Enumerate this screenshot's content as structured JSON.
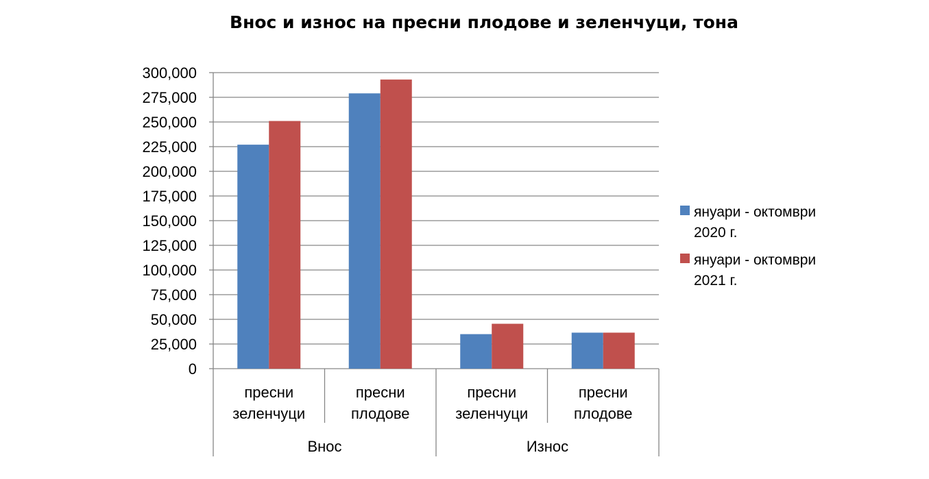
{
  "chart_data": {
    "type": "bar",
    "title": "Внос и износ на пресни плодове и зеленчуци, тона",
    "xlabel": "",
    "ylabel": "",
    "ylim": [
      0,
      300000
    ],
    "ytick_values": [
      0,
      25000,
      50000,
      75000,
      100000,
      125000,
      150000,
      175000,
      200000,
      225000,
      250000,
      275000,
      300000
    ],
    "ytick_labels": [
      "0",
      "25,000",
      "50,000",
      "75,000",
      "100,000",
      "125,000",
      "150,000",
      "175,000",
      "200,000",
      "225,000",
      "250,000",
      "275,000",
      "300,000"
    ],
    "groups": [
      "Внос",
      "Износ"
    ],
    "categories": [
      {
        "group": 0,
        "label": [
          "пресни",
          "зеленчуци"
        ]
      },
      {
        "group": 0,
        "label": [
          "пресни",
          "плодове"
        ]
      },
      {
        "group": 1,
        "label": [
          "пресни",
          "зеленчуци"
        ]
      },
      {
        "group": 1,
        "label": [
          "пресни",
          "плодове"
        ]
      }
    ],
    "series": [
      {
        "name": [
          "януари - октомври",
          "2020 г."
        ],
        "color": "#4f81bd",
        "values": [
          227000,
          279000,
          35000,
          36500
        ]
      },
      {
        "name": [
          "януари - октомври",
          "2021 г."
        ],
        "color": "#c0504d",
        "values": [
          251000,
          293000,
          45500,
          36500
        ]
      }
    ],
    "grid": true,
    "legend_position": "right"
  }
}
